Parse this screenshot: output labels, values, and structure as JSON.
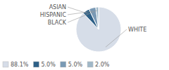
{
  "chart_data": {
    "type": "pie",
    "categories": [
      "WHITE",
      "ASIAN",
      "HISPANIC",
      "BLACK"
    ],
    "values": [
      88.1,
      5.0,
      5.0,
      2.0
    ],
    "value_labels": [
      "88.1%",
      "5.0%",
      "5.0%",
      "2.0%"
    ],
    "colors": [
      "#d6dde8",
      "#2e6087",
      "#7a9ab5",
      "#a0b8c8"
    ],
    "legend": "lower left"
  }
}
